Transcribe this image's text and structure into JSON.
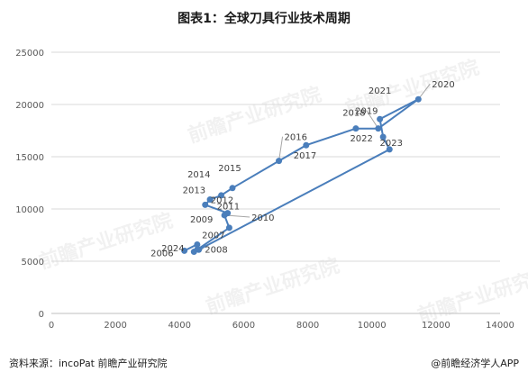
{
  "title": "图表1：全球刀具行业技术周期",
  "footer": {
    "source": "资料来源：incoPat 前瞻产业研究院",
    "brand": "@前瞻经济学人APP"
  },
  "watermark": "前瞻产业研究院",
  "chart_data": {
    "type": "scatter",
    "title": "",
    "xlabel": "",
    "ylabel": "",
    "xlim": [
      0,
      14000
    ],
    "ylim": [
      0,
      25000
    ],
    "xticks": [
      0,
      2000,
      4000,
      6000,
      8000,
      10000,
      12000,
      14000
    ],
    "yticks": [
      0,
      5000,
      10000,
      15000,
      20000,
      25000
    ],
    "grid": "horizontal",
    "legend": "none",
    "color": "#4a7ebb",
    "series": [
      {
        "points": [
          {
            "label": "2006",
            "x": 4150,
            "y": 6000
          },
          {
            "label": "2007",
            "x": 4550,
            "y": 6600
          },
          {
            "label": "2008",
            "x": 4450,
            "y": 5900
          },
          {
            "label": "2009",
            "x": 5550,
            "y": 8200
          },
          {
            "label": "2010",
            "x": 5400,
            "y": 9400
          },
          {
            "label": "2011",
            "x": 5500,
            "y": 9600
          },
          {
            "label": "2012",
            "x": 4800,
            "y": 10400
          },
          {
            "label": "2013",
            "x": 4950,
            "y": 10900
          },
          {
            "label": "2014",
            "x": 5300,
            "y": 11300
          },
          {
            "label": "2015",
            "x": 5650,
            "y": 12000
          },
          {
            "label": "2016",
            "x": 7100,
            "y": 14600
          },
          {
            "label": "2017",
            "x": 7950,
            "y": 16100
          },
          {
            "label": "2018",
            "x": 9500,
            "y": 17700
          },
          {
            "label": "2019",
            "x": 10200,
            "y": 17700
          },
          {
            "label": "2020",
            "x": 11450,
            "y": 20500
          },
          {
            "label": "2021",
            "x": 10250,
            "y": 18600
          },
          {
            "label": "2022",
            "x": 10350,
            "y": 16900
          },
          {
            "label": "2023",
            "x": 10550,
            "y": 15700
          },
          {
            "label": "2024",
            "x": 4600,
            "y": 6100
          }
        ]
      }
    ]
  }
}
